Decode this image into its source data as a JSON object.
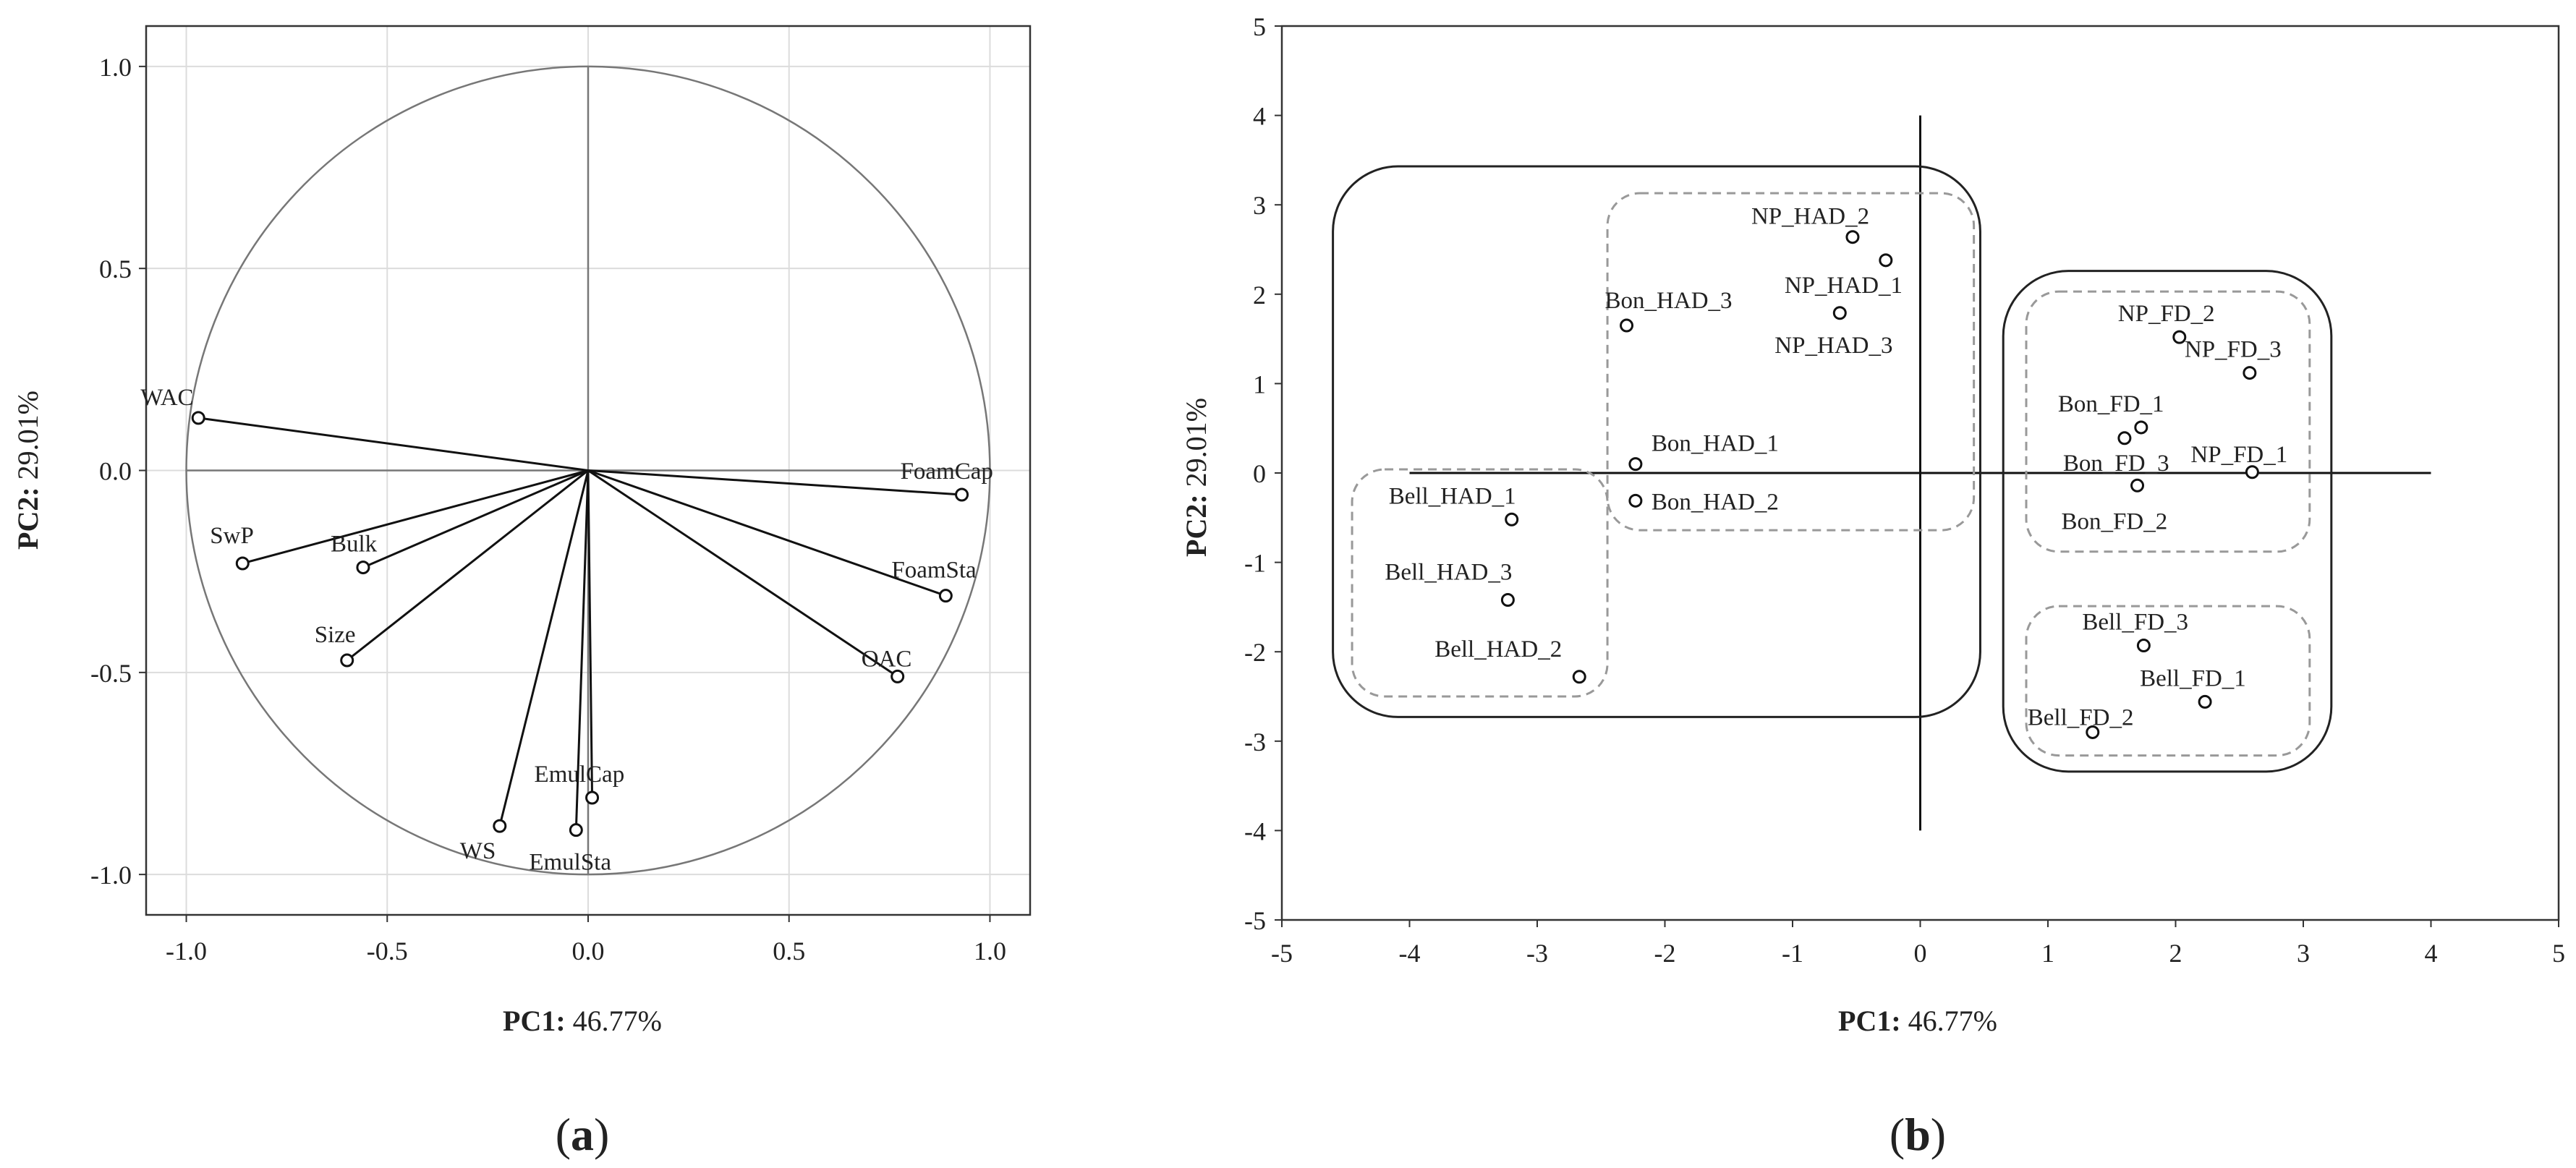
{
  "chart_data": [
    {
      "panel": "a",
      "type": "scatter",
      "subtype": "correlation-circle",
      "xlabel": {
        "bold": "PC1:",
        "rest": " 46.77%"
      },
      "ylabel": {
        "bold": "PC2:",
        "rest": " 29.01%"
      },
      "xlim": [
        -1.1,
        1.1
      ],
      "ylim": [
        -1.1,
        1.1
      ],
      "xticks": [
        "-1.0",
        "-0.5",
        "0.0",
        "0.5",
        "1.0"
      ],
      "yticks": [
        "1.0",
        "0.5",
        "0.0",
        "-0.5",
        "-1.0"
      ],
      "grid": true,
      "circle_radius": 1.0,
      "vectors": [
        {
          "name": "WAC",
          "x": -0.97,
          "y": 0.13
        },
        {
          "name": "FoamCap",
          "x": 0.93,
          "y": -0.06
        },
        {
          "name": "SwP",
          "x": -0.86,
          "y": -0.23
        },
        {
          "name": "Bulk",
          "x": -0.56,
          "y": -0.24
        },
        {
          "name": "FoamSta",
          "x": 0.89,
          "y": -0.31
        },
        {
          "name": "Size",
          "x": -0.6,
          "y": -0.47
        },
        {
          "name": "OAC",
          "x": 0.77,
          "y": -0.51
        },
        {
          "name": "EmulCap",
          "x": 0.01,
          "y": -0.81
        },
        {
          "name": "WS",
          "x": -0.22,
          "y": -0.88
        },
        {
          "name": "EmulSta",
          "x": -0.03,
          "y": -0.89
        }
      ],
      "panel_label": "a"
    },
    {
      "panel": "b",
      "type": "scatter",
      "xlabel": {
        "bold": "PC1:",
        "rest": " 46.77%"
      },
      "ylabel": {
        "bold": "PC2:",
        "rest": " 29.01%"
      },
      "xlim": [
        -5,
        5
      ],
      "ylim": [
        -5,
        5
      ],
      "xticks": [
        "-5",
        "-4",
        "-3",
        "-2",
        "-1",
        "0",
        "1",
        "2",
        "3",
        "4",
        "5"
      ],
      "yticks": [
        "5",
        "4",
        "3",
        "2",
        "1",
        "0",
        "-1",
        "-2",
        "-3",
        "-4",
        "-5"
      ],
      "grid": false,
      "points": [
        {
          "name": "NP_HAD_2",
          "x": -0.53,
          "y": 2.64
        },
        {
          "name": "NP_HAD_1",
          "x": -0.27,
          "y": 2.38
        },
        {
          "name": "NP_HAD_3",
          "x": -0.63,
          "y": 1.79
        },
        {
          "name": "Bon_HAD_3",
          "x": -2.3,
          "y": 1.65
        },
        {
          "name": "Bon_HAD_1",
          "x": -2.23,
          "y": 0.1
        },
        {
          "name": "Bon_HAD_2",
          "x": -2.23,
          "y": -0.31
        },
        {
          "name": "Bell_HAD_1",
          "x": -3.2,
          "y": -0.52
        },
        {
          "name": "Bell_HAD_3",
          "x": -3.23,
          "y": -1.42
        },
        {
          "name": "Bell_HAD_2",
          "x": -2.67,
          "y": -2.28
        },
        {
          "name": "NP_FD_2",
          "x": 2.03,
          "y": 1.52
        },
        {
          "name": "NP_FD_3",
          "x": 2.58,
          "y": 1.12
        },
        {
          "name": "Bon_FD_1",
          "x": 1.73,
          "y": 0.51
        },
        {
          "name": "Bon_FD_3",
          "x": 1.6,
          "y": 0.39
        },
        {
          "name": "NP_FD_1",
          "x": 2.6,
          "y": 0.01
        },
        {
          "name": "Bon_FD_2",
          "x": 1.7,
          "y": -0.14
        },
        {
          "name": "Bell_FD_3",
          "x": 1.75,
          "y": -1.93
        },
        {
          "name": "Bell_FD_1",
          "x": 2.23,
          "y": -2.56
        },
        {
          "name": "Bell_FD_2",
          "x": 1.35,
          "y": -2.9
        }
      ],
      "groups": [
        {
          "kind": "solid",
          "x": [
            -4.6,
            0.47
          ],
          "y": [
            -2.73,
            3.43
          ]
        },
        {
          "kind": "solid",
          "x": [
            0.65,
            3.22
          ],
          "y": [
            -3.34,
            2.26
          ]
        },
        {
          "kind": "dashed",
          "x": [
            -4.45,
            -2.45
          ],
          "y": [
            -2.5,
            0.04
          ]
        },
        {
          "kind": "dashed",
          "x": [
            -2.45,
            0.42
          ],
          "y": [
            -0.64,
            3.13
          ]
        },
        {
          "kind": "dashed",
          "x": [
            0.83,
            3.05
          ],
          "y": [
            -0.88,
            2.03
          ]
        },
        {
          "kind": "dashed",
          "x": [
            0.83,
            3.05
          ],
          "y": [
            -3.16,
            -1.49
          ]
        }
      ],
      "panel_label": "b"
    }
  ]
}
